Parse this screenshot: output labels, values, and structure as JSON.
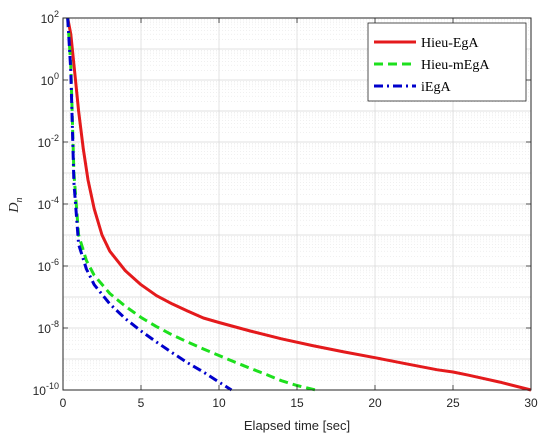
{
  "chart_data": {
    "type": "line",
    "xlabel": "Elapsed time [sec]",
    "ylabel_base": "D",
    "ylabel_sub": "n",
    "xlim": [
      0,
      30
    ],
    "ylim": [
      1e-10,
      100
    ],
    "yscale": "log",
    "grid": true,
    "legend_position": "top-right",
    "x_ticks": [
      0,
      5,
      10,
      15,
      20,
      25,
      30
    ],
    "x_tick_labels": [
      "0",
      "5",
      "10",
      "15",
      "20",
      "25",
      "30"
    ],
    "y_ticks": [
      1e-10,
      1e-08,
      1e-06,
      0.0001,
      0.01,
      1,
      100
    ],
    "y_tick_labels": [
      {
        "base": "10",
        "exp": "-10"
      },
      {
        "base": "10",
        "exp": "-8"
      },
      {
        "base": "10",
        "exp": "-6"
      },
      {
        "base": "10",
        "exp": "-4"
      },
      {
        "base": "10",
        "exp": "-2"
      },
      {
        "base": "10",
        "exp": "0"
      },
      {
        "base": "10",
        "exp": "2"
      }
    ],
    "series": [
      {
        "name": "Hieu-EgA",
        "color": "#e41a1c",
        "style": "solid",
        "x": [
          0.3,
          0.5,
          0.8,
          1,
          1.3,
          1.6,
          2,
          2.5,
          3,
          4,
          5,
          6,
          7,
          8,
          9,
          10,
          12,
          14,
          16,
          18,
          20,
          22,
          24,
          25,
          26,
          28,
          30
        ],
        "y": [
          100,
          30,
          1,
          0.1,
          0.006,
          0.0006,
          7e-05,
          1e-05,
          3e-06,
          7e-07,
          2.5e-07,
          1.1e-07,
          6e-08,
          3.5e-08,
          2.1e-08,
          1.5e-08,
          8e-09,
          4.5e-09,
          2.7e-09,
          1.7e-09,
          1.1e-09,
          7e-10,
          4.5e-10,
          3.8e-10,
          3e-10,
          1.8e-10,
          1e-10
        ]
      },
      {
        "name": "Hieu-mEgA",
        "color": "#1de01d",
        "style": "dashed",
        "x": [
          0.3,
          0.5,
          0.7,
          1,
          1.5,
          2,
          3,
          4,
          5,
          6,
          7,
          8,
          9,
          10,
          11,
          12,
          13,
          14,
          15,
          16.2
        ],
        "y": [
          100,
          3,
          0.001,
          1e-05,
          1.5e-06,
          5e-07,
          1.3e-07,
          5e-08,
          2.2e-08,
          1.1e-08,
          6e-09,
          3.5e-09,
          2.1e-09,
          1.3e-09,
          8e-10,
          5e-10,
          3.2e-10,
          2e-10,
          1.4e-10,
          1e-10
        ]
      },
      {
        "name": "iEgA",
        "color": "#0000cc",
        "style": "dashdot",
        "x": [
          0.3,
          0.5,
          0.7,
          1,
          1.5,
          2,
          3,
          4,
          5,
          6,
          7,
          8,
          9,
          10,
          10.8
        ],
        "y": [
          100,
          2,
          0.0005,
          5e-06,
          8e-07,
          2.5e-07,
          6e-08,
          2e-08,
          8e-09,
          3.5e-09,
          1.6e-09,
          7.5e-10,
          3.8e-10,
          1.8e-10,
          1e-10
        ]
      }
    ]
  }
}
